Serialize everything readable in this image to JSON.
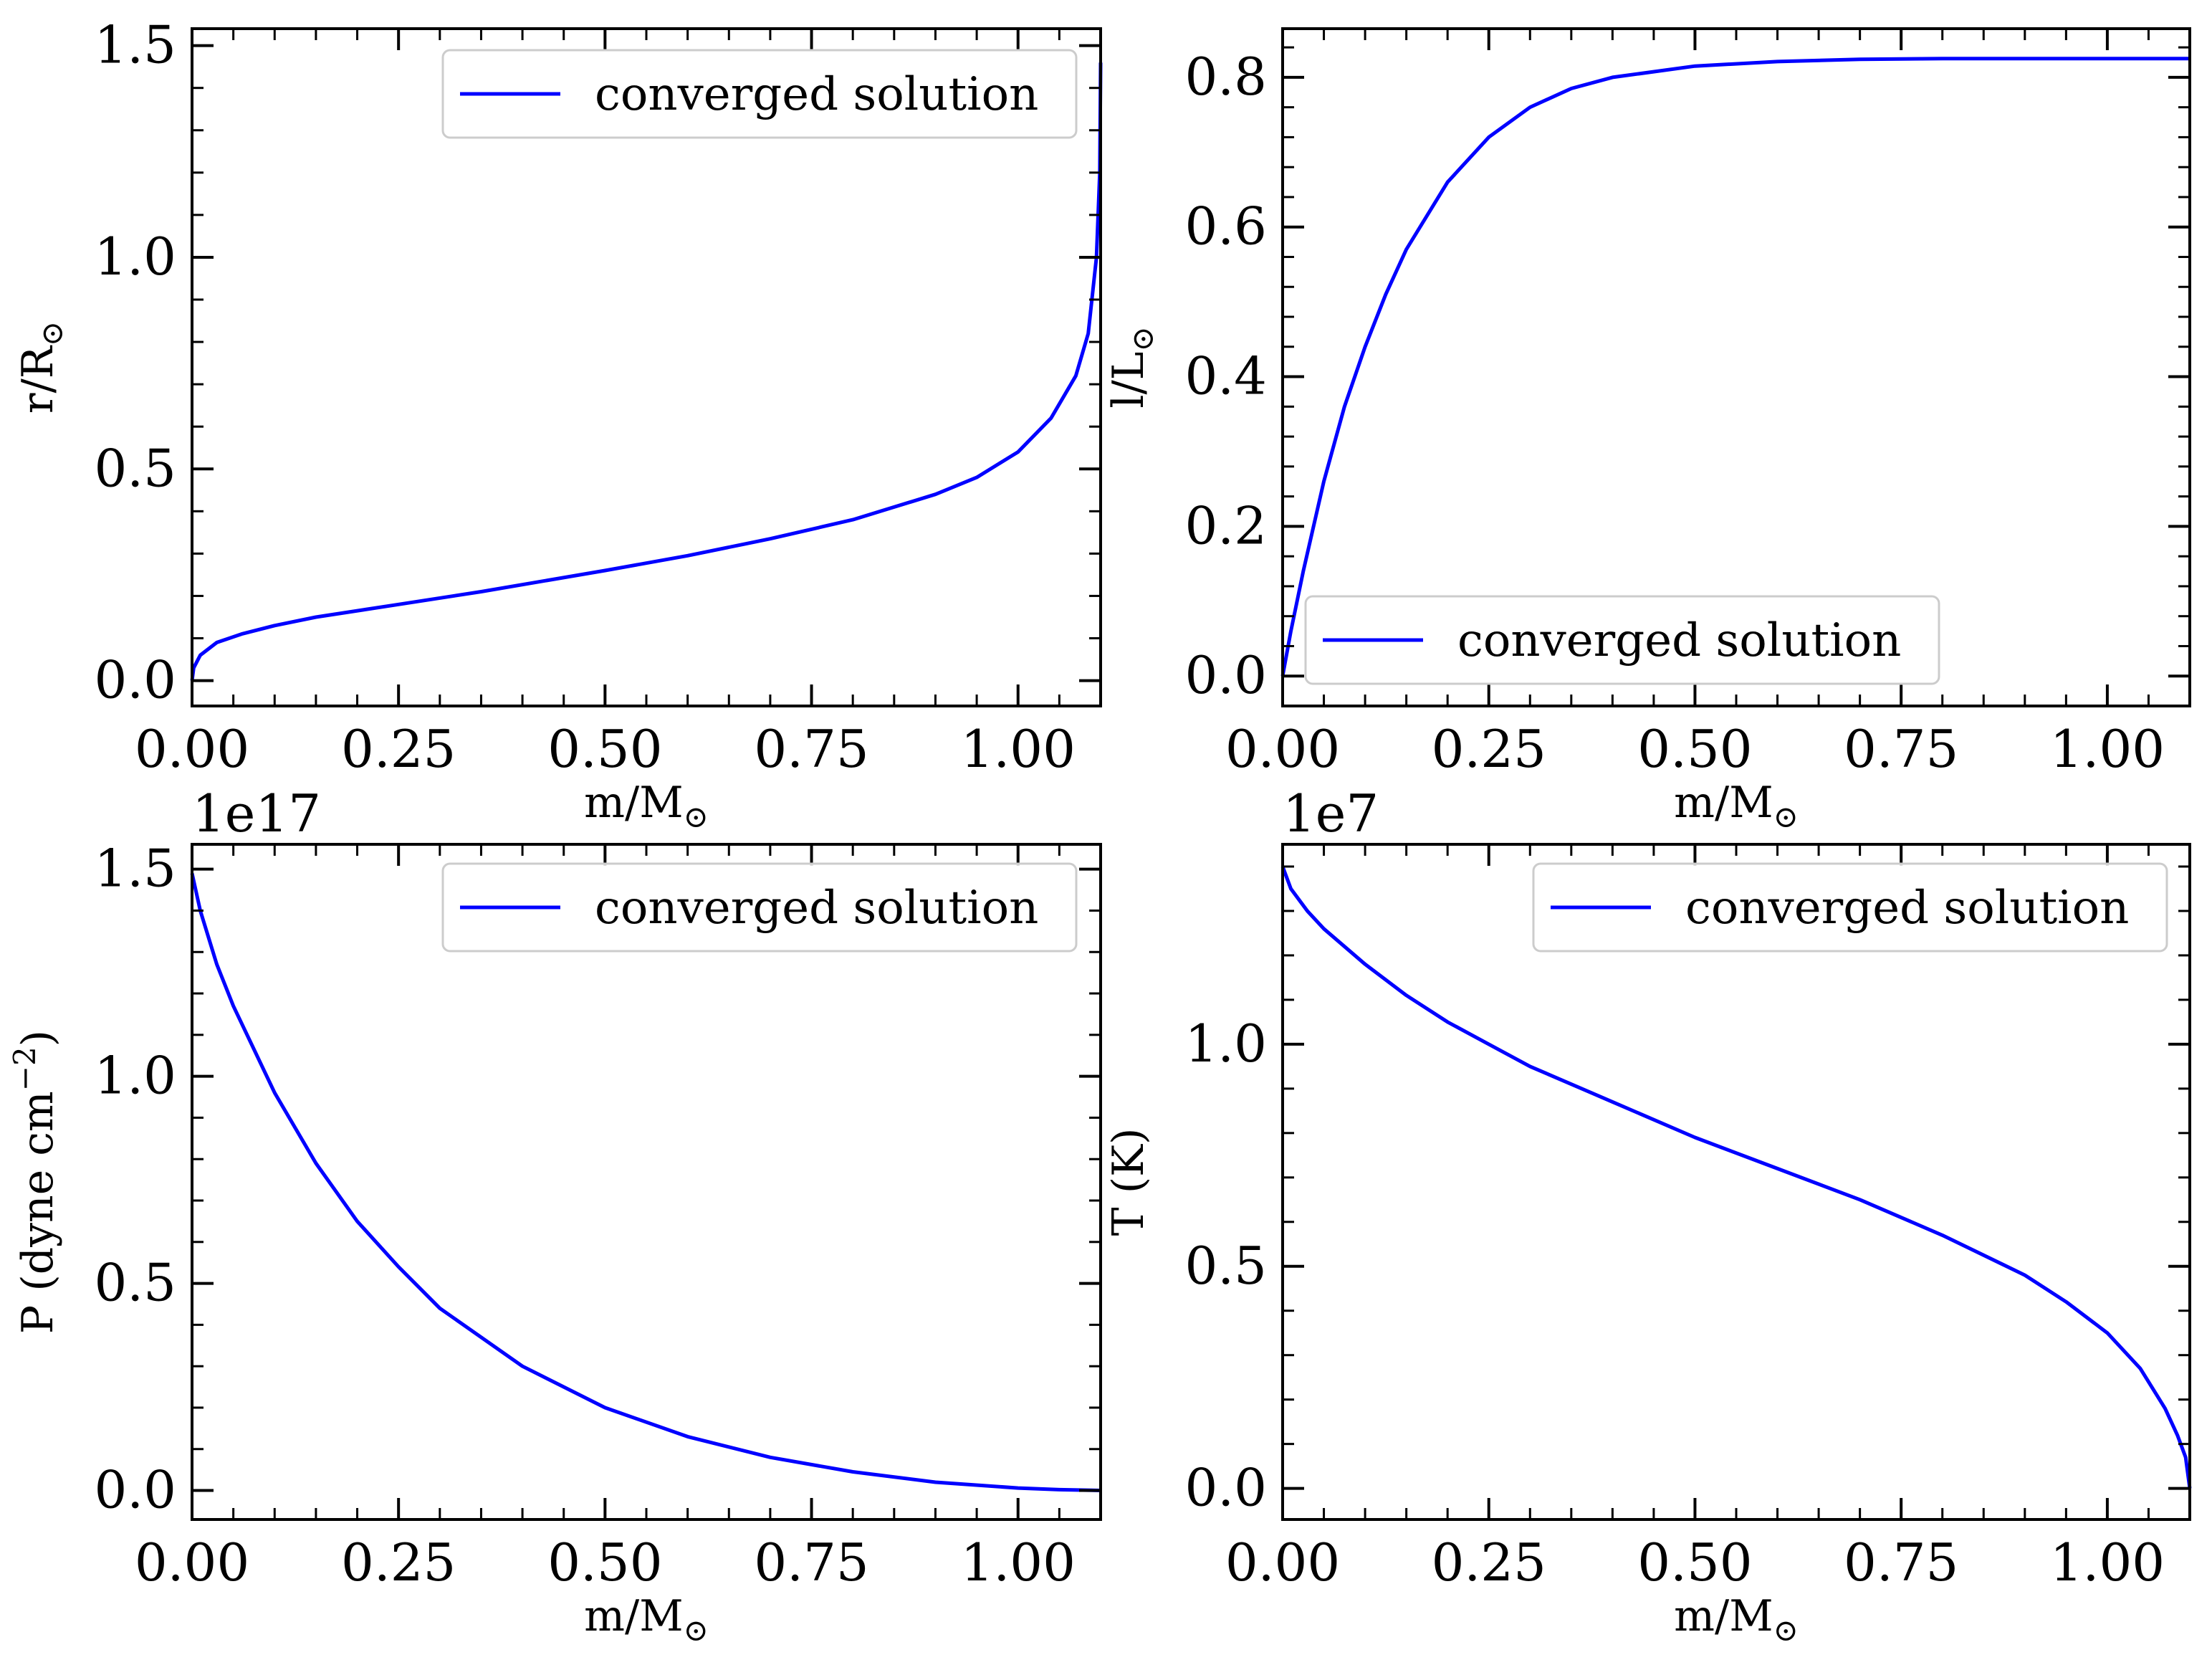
{
  "colors": {
    "line": "#0000ff",
    "axes": "#000000",
    "background": "#ffffff",
    "legend_border": "#cccccc"
  },
  "chart_data": [
    {
      "type": "line",
      "title": "",
      "xlabel": "m/M",
      "xlabel_symbol": "⊙",
      "ylabel": "r/R",
      "ylabel_symbol": "⊙",
      "ylabel_suffix": "",
      "xlim": [
        0,
        1.1
      ],
      "ylim": [
        -0.06,
        1.54
      ],
      "xticks": [
        "0.00",
        "0.25",
        "0.50",
        "0.75",
        "1.00"
      ],
      "yticks": [
        "0.0",
        "0.5",
        "1.0",
        "1.5"
      ],
      "offset_text": "",
      "legend": {
        "label": "converged solution",
        "position": "upper right"
      },
      "grid": false,
      "series": [
        {
          "name": "converged solution",
          "x": [
            0,
            0.002,
            0.01,
            0.03,
            0.06,
            0.1,
            0.15,
            0.25,
            0.35,
            0.5,
            0.6,
            0.7,
            0.8,
            0.9,
            0.95,
            1.0,
            1.04,
            1.07,
            1.085,
            1.095,
            1.099,
            1.1
          ],
          "y": [
            0,
            0.03,
            0.06,
            0.09,
            0.11,
            0.13,
            0.15,
            0.18,
            0.21,
            0.26,
            0.295,
            0.335,
            0.38,
            0.44,
            0.48,
            0.54,
            0.62,
            0.72,
            0.82,
            1.0,
            1.2,
            1.46
          ]
        }
      ]
    },
    {
      "type": "line",
      "title": "",
      "xlabel": "m/M",
      "xlabel_symbol": "⊙",
      "ylabel": "l/L",
      "ylabel_symbol": "⊙",
      "ylabel_suffix": "",
      "xlim": [
        0,
        1.1
      ],
      "ylim": [
        -0.04,
        0.865
      ],
      "xticks": [
        "0.00",
        "0.25",
        "0.50",
        "0.75",
        "1.00"
      ],
      "yticks": [
        "0.0",
        "0.2",
        "0.4",
        "0.6",
        "0.8"
      ],
      "offset_text": "",
      "legend": {
        "label": "converged solution",
        "position": "lower left"
      },
      "grid": false,
      "series": [
        {
          "name": "converged solution",
          "x": [
            0,
            0.01,
            0.025,
            0.05,
            0.075,
            0.1,
            0.125,
            0.15,
            0.2,
            0.25,
            0.3,
            0.35,
            0.4,
            0.5,
            0.6,
            0.7,
            0.8,
            0.9,
            1.0,
            1.1
          ],
          "y": [
            0,
            0.06,
            0.14,
            0.26,
            0.36,
            0.44,
            0.51,
            0.57,
            0.66,
            0.72,
            0.76,
            0.785,
            0.8,
            0.815,
            0.821,
            0.824,
            0.825,
            0.825,
            0.825,
            0.825
          ]
        }
      ]
    },
    {
      "type": "line",
      "title": "",
      "xlabel": "m/M",
      "xlabel_symbol": "⊙",
      "ylabel": "P (dyne cm",
      "ylabel_symbol": "",
      "ylabel_suffix": "−2)",
      "xlim": [
        0,
        1.1
      ],
      "ylim": [
        -0.07,
        1.56
      ],
      "xticks": [
        "0.00",
        "0.25",
        "0.50",
        "0.75",
        "1.00"
      ],
      "yticks": [
        "0.0",
        "0.5",
        "1.0",
        "1.5"
      ],
      "offset_text": "1e17",
      "legend": {
        "label": "converged solution",
        "position": "upper right"
      },
      "grid": false,
      "series": [
        {
          "name": "converged solution",
          "x": [
            0,
            0.01,
            0.03,
            0.05,
            0.1,
            0.15,
            0.2,
            0.25,
            0.3,
            0.4,
            0.5,
            0.6,
            0.7,
            0.8,
            0.9,
            1.0,
            1.05,
            1.1
          ],
          "y": [
            1.49,
            1.4,
            1.27,
            1.17,
            0.96,
            0.79,
            0.65,
            0.54,
            0.44,
            0.3,
            0.2,
            0.13,
            0.08,
            0.045,
            0.02,
            0.006,
            0.002,
            0
          ]
        }
      ]
    },
    {
      "type": "line",
      "title": "",
      "xlabel": "m/M",
      "xlabel_symbol": "⊙",
      "ylabel": "T (K)",
      "ylabel_symbol": "",
      "ylabel_suffix": "",
      "xlim": [
        0,
        1.1
      ],
      "ylim": [
        -0.07,
        1.45
      ],
      "xticks": [
        "0.00",
        "0.25",
        "0.50",
        "0.75",
        "1.00"
      ],
      "yticks": [
        "0.0",
        "0.5",
        "1.0"
      ],
      "offset_text": "1e7",
      "legend": {
        "label": "converged solution",
        "position": "upper right"
      },
      "grid": false,
      "series": [
        {
          "name": "converged solution",
          "x": [
            0,
            0.01,
            0.03,
            0.05,
            0.1,
            0.15,
            0.2,
            0.25,
            0.3,
            0.4,
            0.5,
            0.6,
            0.7,
            0.8,
            0.9,
            0.95,
            1.0,
            1.04,
            1.07,
            1.085,
            1.095,
            1.1
          ],
          "y": [
            1.4,
            1.35,
            1.3,
            1.26,
            1.18,
            1.11,
            1.05,
            1.0,
            0.95,
            0.87,
            0.79,
            0.72,
            0.65,
            0.57,
            0.48,
            0.42,
            0.35,
            0.27,
            0.18,
            0.12,
            0.07,
            0
          ]
        }
      ]
    }
  ]
}
